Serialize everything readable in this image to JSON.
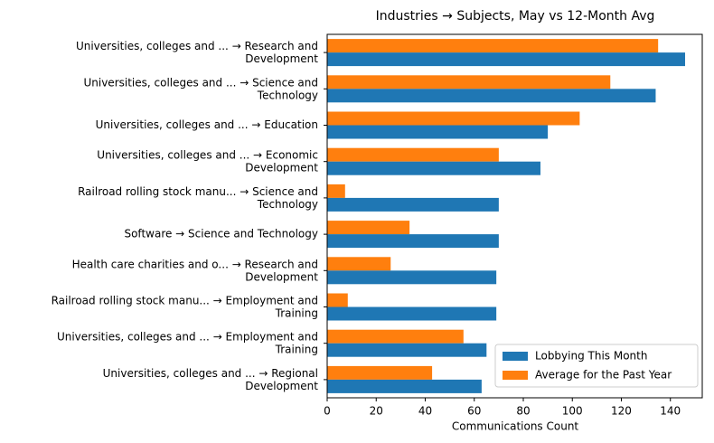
{
  "chart_data": {
    "type": "barh",
    "title": "Industries → Subjects, May vs 12-Month Avg",
    "xlabel": "Communications Count",
    "categories": [
      "Universities, colleges and ... → Research and\nDevelopment",
      "Universities, colleges and ... → Science and\nTechnology",
      "Universities, colleges and ... → Education",
      "Universities, colleges and ... → Economic\nDevelopment",
      "Railroad rolling stock manu... → Science and\nTechnology",
      "Software → Science and Technology",
      "Health care charities and o... → Research and\nDevelopment",
      "Railroad rolling stock manu... → Employment and\nTraining",
      "Universities, colleges and ... → Employment and\nTraining",
      "Universities, colleges and ... → Regional\nDevelopment"
    ],
    "series": [
      {
        "name": "Lobbying This Month",
        "color": "#1f77b4",
        "values": [
          146,
          134,
          90,
          87,
          70,
          70,
          69,
          69,
          65,
          63
        ]
      },
      {
        "name": "Average for the Past Year",
        "color": "#ff7f0e",
        "values": [
          135,
          115.5,
          103,
          70,
          7.3,
          33.6,
          25.9,
          8.4,
          55.6,
          42.8
        ]
      }
    ],
    "xlim": [
      0,
      153
    ],
    "xticks": [
      0,
      20,
      40,
      60,
      80,
      100,
      120,
      140
    ],
    "legend": "lower right"
  }
}
